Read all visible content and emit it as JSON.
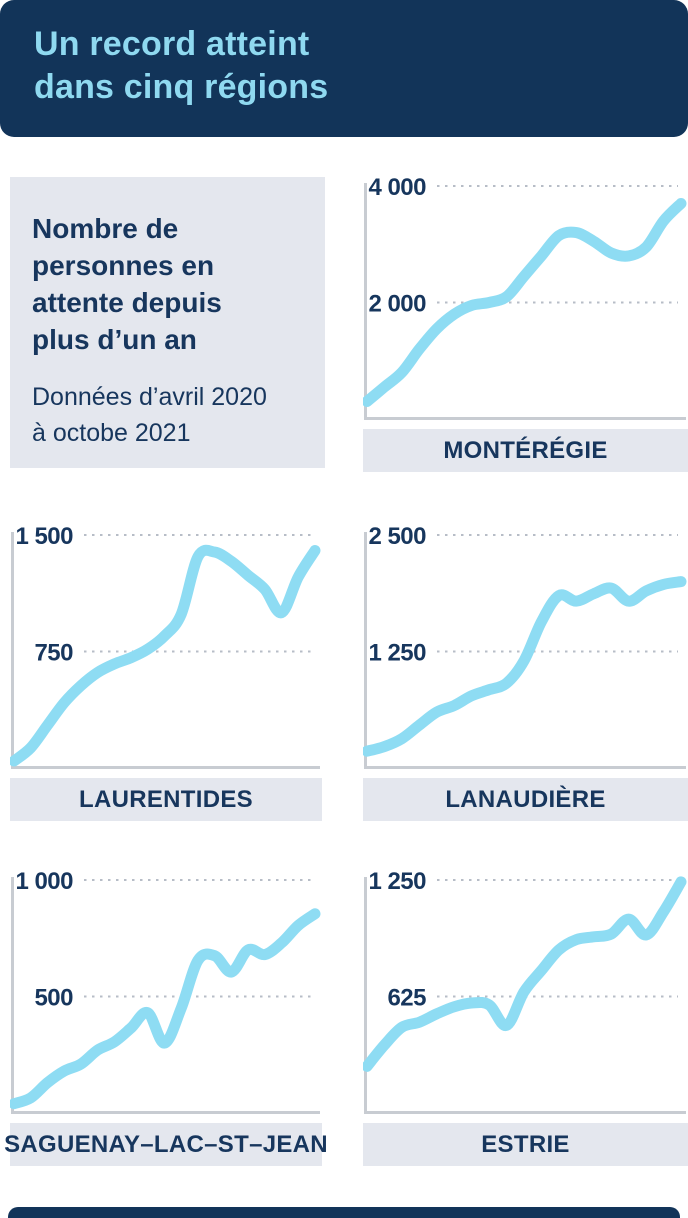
{
  "header": {
    "title_line1": "Un record atteint",
    "title_line2": "dans cinq régions"
  },
  "info_panel": {
    "title_lines": [
      "Nombre de",
      "personnes en",
      "attente depuis",
      "plus d’un an"
    ],
    "subtitle_lines": [
      "Données d’avril 2020",
      "à octobe 2021"
    ]
  },
  "colors": {
    "navy": "#123459",
    "light_blue": "#8fd9f0",
    "line": "#8edcf3",
    "panel_gray": "#e4e7ee",
    "gridline": "#b7bdc7",
    "axis": "#c8ccd2",
    "text_navy": "#17365d",
    "background": "#ffffff"
  },
  "chart_data": [
    {
      "type": "line",
      "title": "MONTÉRÉGIE",
      "ylim": [
        0,
        4000
      ],
      "yticks": [
        {
          "value": 4000,
          "label": "4 000"
        },
        {
          "value": 2000,
          "label": "2 000"
        }
      ],
      "grid": "horizontal-dashed",
      "legend": "none",
      "values": [
        300,
        550,
        800,
        1200,
        1550,
        1800,
        1950,
        2000,
        2100,
        2450,
        2800,
        3150,
        3200,
        3050,
        2850,
        2800,
        2950,
        3400,
        3700
      ]
    },
    {
      "type": "line",
      "title": "LAURENTIDES",
      "ylim": [
        0,
        1500
      ],
      "yticks": [
        {
          "value": 1500,
          "label": "1 500"
        },
        {
          "value": 750,
          "label": "750"
        }
      ],
      "grid": "horizontal-dashed",
      "legend": "none",
      "values": [
        45,
        130,
        275,
        420,
        530,
        615,
        670,
        710,
        765,
        850,
        990,
        1360,
        1390,
        1330,
        1240,
        1150,
        1000,
        1230,
        1400
      ]
    },
    {
      "type": "line",
      "title": "LANAUDIÈRE",
      "ylim": [
        0,
        2500
      ],
      "yticks": [
        {
          "value": 2500,
          "label": "2 500"
        },
        {
          "value": 1250,
          "label": "1 250"
        }
      ],
      "grid": "horizontal-dashed",
      "legend": "none",
      "values": [
        180,
        230,
        315,
        460,
        600,
        670,
        775,
        840,
        910,
        1150,
        1570,
        1850,
        1790,
        1870,
        1930,
        1790,
        1900,
        1970,
        2000
      ]
    },
    {
      "type": "line",
      "title": "SAGUENAY–LAC–ST–JEAN",
      "ylim": [
        0,
        1000
      ],
      "yticks": [
        {
          "value": 1000,
          "label": "1 000"
        },
        {
          "value": 500,
          "label": "500"
        }
      ],
      "grid": "horizontal-dashed",
      "legend": "none",
      "values": [
        40,
        65,
        130,
        180,
        210,
        270,
        305,
        365,
        430,
        300,
        450,
        655,
        675,
        605,
        700,
        680,
        730,
        805,
        855
      ]
    },
    {
      "type": "line",
      "title": "ESTRIE",
      "ylim": [
        0,
        1250
      ],
      "yticks": [
        {
          "value": 1250,
          "label": "1 250"
        },
        {
          "value": 625,
          "label": "625"
        }
      ],
      "grid": "horizontal-dashed",
      "legend": "none",
      "values": [
        250,
        365,
        460,
        487,
        532,
        570,
        590,
        580,
        470,
        650,
        765,
        875,
        930,
        945,
        960,
        1040,
        955,
        1080,
        1240
      ]
    }
  ]
}
